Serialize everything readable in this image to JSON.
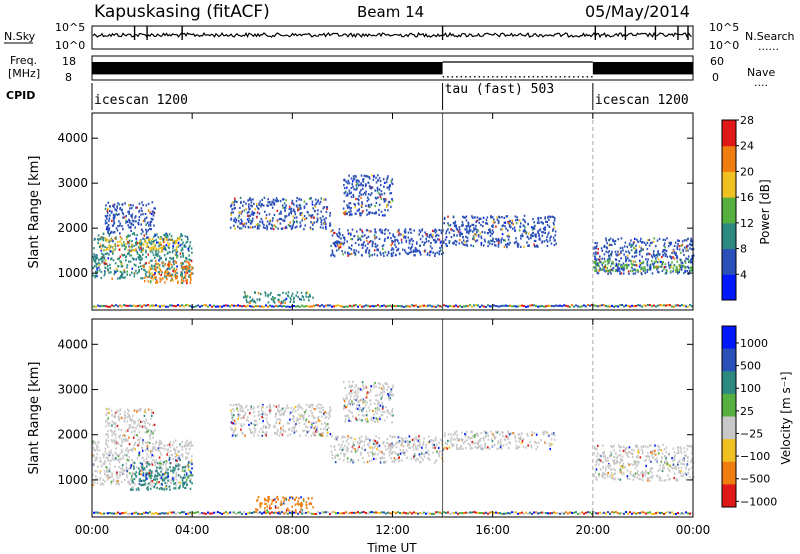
{
  "header": {
    "station": "Kapuskasing (fitACF)",
    "beam": "Beam 14",
    "date": "05/May/2014"
  },
  "chart_data": [
    {
      "type": "line",
      "panel": "noise",
      "left_label": "N.Sky",
      "right_label": "N.Search",
      "left_ticks": [
        "10^5",
        "10^0"
      ],
      "right_ticks": [
        "10^5",
        "10^0"
      ],
      "right_legend_line": "......"
    },
    {
      "type": "line",
      "panel": "frequency",
      "left_label_1": "Freq.",
      "left_label_2": "[MHz]",
      "right_label": "Nave",
      "left_ticks": [
        "18",
        "8"
      ],
      "right_ticks": [
        "60",
        "0"
      ],
      "right_legend_line": "....",
      "frequency_level_mhz": 12,
      "nave_levels": [
        {
          "start_hour": 0,
          "end_hour": 14,
          "value": 24
        },
        {
          "start_hour": 14,
          "end_hour": 20,
          "value": 8
        },
        {
          "start_hour": 20,
          "end_hour": 24,
          "value": 24
        }
      ]
    },
    {
      "type": "table",
      "panel": "cpid",
      "label": "CPID",
      "segments": [
        {
          "start_hour": 0,
          "end_hour": 14,
          "name": "icescan 1200"
        },
        {
          "start_hour": 14,
          "end_hour": 20,
          "name": "tau (fast) 503"
        },
        {
          "start_hour": 20,
          "end_hour": 24,
          "name": "icescan 1200"
        }
      ]
    },
    {
      "type": "heatmap",
      "panel": "power",
      "ylabel": "Slant Range [km]",
      "yticks": [
        "1000",
        "2000",
        "3000",
        "4000"
      ],
      "ytick_values": [
        1000,
        2000,
        3000,
        4000
      ],
      "ylim": [
        180,
        4560
      ],
      "colorbar_label": "Power [dB]",
      "colorbar_ticks": [
        "4",
        "8",
        "12",
        "16",
        "20",
        "24",
        "28"
      ],
      "colorbar_colors": [
        "#0018ff",
        "#2a4fb8",
        "#2e8a80",
        "#55b040",
        "#f0c020",
        "#f07d10",
        "#e01818"
      ],
      "bands": [
        {
          "start_hour": 0.0,
          "end_hour": 4.0,
          "range_low": 900,
          "range_high": 1900,
          "color": "#2e8a80"
        },
        {
          "start_hour": 0.3,
          "end_hour": 3.5,
          "range_low": 1500,
          "range_high": 1800,
          "color": "#f0c020"
        },
        {
          "start_hour": 2.0,
          "end_hour": 4.0,
          "range_low": 800,
          "range_high": 1300,
          "color": "#f07d10"
        },
        {
          "start_hour": 0.5,
          "end_hour": 2.5,
          "range_low": 1900,
          "range_high": 2600,
          "color": "#2a4fb8"
        },
        {
          "start_hour": 5.5,
          "end_hour": 9.5,
          "range_low": 2000,
          "range_high": 2700,
          "color": "#2a4fb8"
        },
        {
          "start_hour": 6.0,
          "end_hour": 8.8,
          "range_low": 350,
          "range_high": 600,
          "color": "#2e8a80"
        },
        {
          "start_hour": 9.5,
          "end_hour": 14.0,
          "range_low": 1400,
          "range_high": 2000,
          "color": "#2a4fb8"
        },
        {
          "start_hour": 10.0,
          "end_hour": 12.0,
          "range_low": 2300,
          "range_high": 3200,
          "color": "#2a4fb8"
        },
        {
          "start_hour": 14.0,
          "end_hour": 18.5,
          "range_low": 1600,
          "range_high": 2300,
          "color": "#2a4fb8"
        },
        {
          "start_hour": 20.0,
          "end_hour": 24.0,
          "range_low": 1000,
          "range_high": 1800,
          "color": "#2a4fb8"
        },
        {
          "start_hour": 20.0,
          "end_hour": 24.0,
          "range_low": 1050,
          "range_high": 1300,
          "color": "#55b040"
        }
      ]
    },
    {
      "type": "heatmap",
      "panel": "velocity",
      "ylabel": "Slant Range [km]",
      "yticks": [
        "1000",
        "2000",
        "3000",
        "4000"
      ],
      "ytick_values": [
        1000,
        2000,
        3000,
        4000
      ],
      "ylim": [
        180,
        4560
      ],
      "colorbar_label": "Velocity [m s⁻¹]",
      "colorbar_ticks": [
        "1000",
        "500",
        "100",
        "25",
        "−25",
        "−100",
        "−500",
        "−1000"
      ],
      "colorbar_colors": [
        "#0018ff",
        "#2a4fb8",
        "#2e8a80",
        "#55b040",
        "#c8c8c8",
        "#f0c020",
        "#f07d10",
        "#e01818"
      ],
      "bands": [
        {
          "start_hour": 0.0,
          "end_hour": 4.0,
          "range_low": 900,
          "range_high": 1900,
          "color": "#c8c8c8"
        },
        {
          "start_hour": 1.5,
          "end_hour": 4.0,
          "range_low": 800,
          "range_high": 1400,
          "color": "#2e8a80"
        },
        {
          "start_hour": 0.5,
          "end_hour": 2.5,
          "range_low": 1900,
          "range_high": 2600,
          "color": "#c8c8c8"
        },
        {
          "start_hour": 5.5,
          "end_hour": 9.5,
          "range_low": 2000,
          "range_high": 2700,
          "color": "#c8c8c8"
        },
        {
          "start_hour": 6.5,
          "end_hour": 8.8,
          "range_low": 300,
          "range_high": 650,
          "color": "#f07d10"
        },
        {
          "start_hour": 9.5,
          "end_hour": 14.0,
          "range_low": 1400,
          "range_high": 2000,
          "color": "#c8c8c8"
        },
        {
          "start_hour": 10.0,
          "end_hour": 12.0,
          "range_low": 2300,
          "range_high": 3200,
          "color": "#c8c8c8"
        },
        {
          "start_hour": 14.0,
          "end_hour": 18.5,
          "range_low": 1700,
          "range_high": 2100,
          "color": "#c8c8c8"
        },
        {
          "start_hour": 20.0,
          "end_hour": 24.0,
          "range_low": 1000,
          "range_high": 1800,
          "color": "#c8c8c8"
        }
      ]
    }
  ],
  "x_axis": {
    "label": "Time UT",
    "ticks": [
      "00:00",
      "04:00",
      "08:00",
      "12:00",
      "16:00",
      "20:00",
      "00:00"
    ],
    "tick_hours": [
      0,
      4,
      8,
      12,
      16,
      20,
      24
    ],
    "xlim": [
      0,
      24
    ],
    "mode_change_hours": [
      14,
      20
    ]
  }
}
